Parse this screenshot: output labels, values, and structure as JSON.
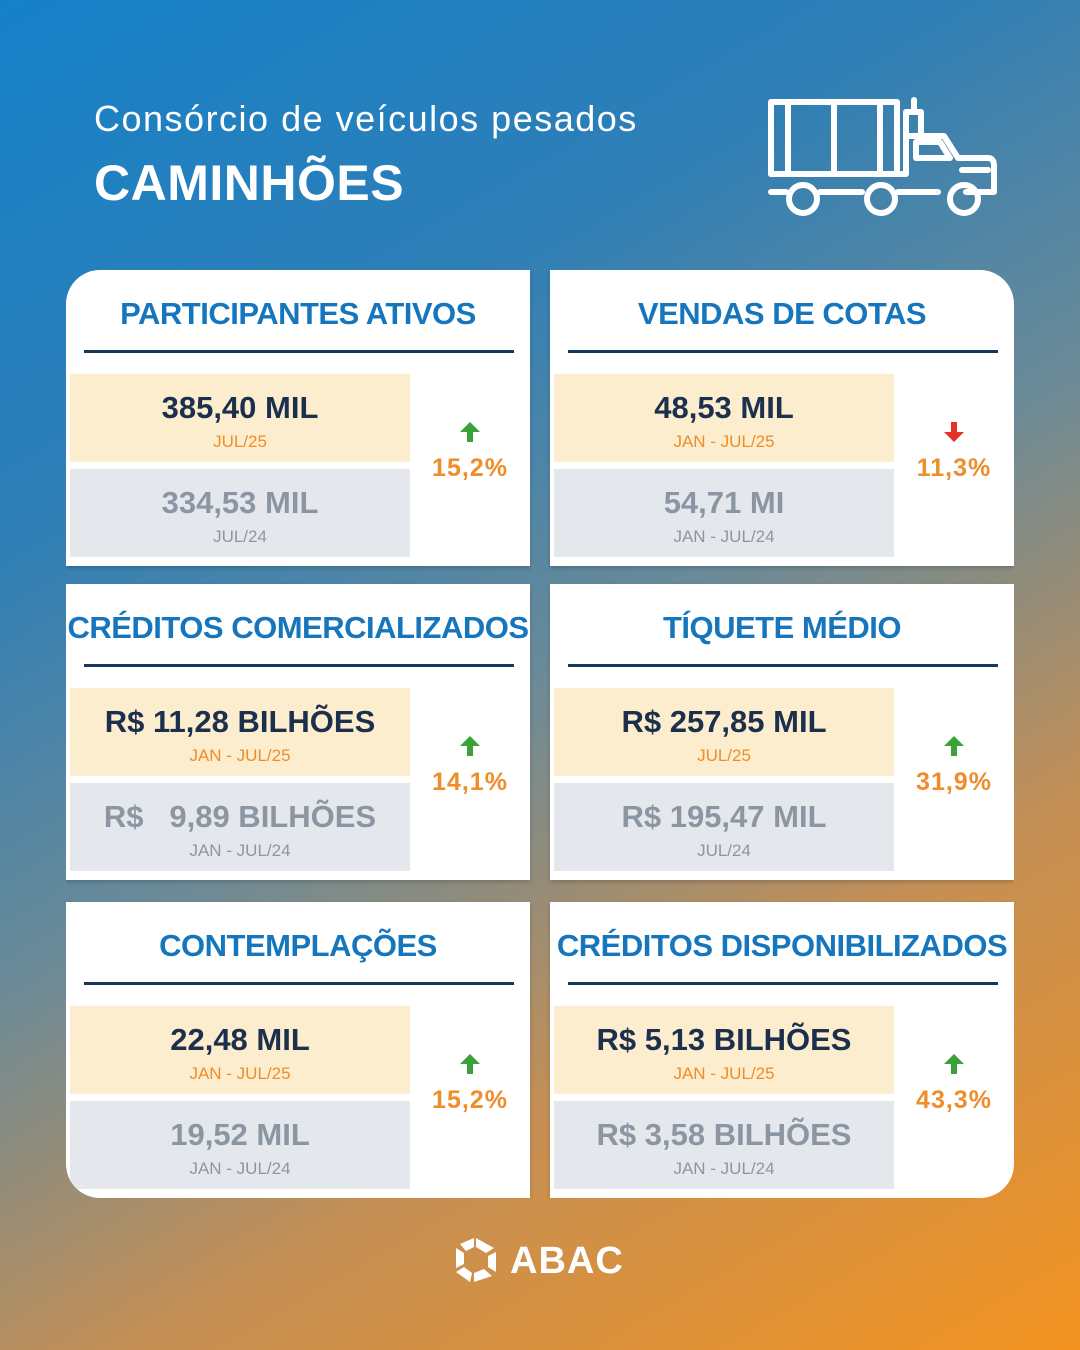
{
  "header": {
    "subtitle": "Consórcio de veículos pesados",
    "title": "CAMINHÕES",
    "icon": "truck-icon"
  },
  "colors": {
    "accent_blue": "#1576bd",
    "navy": "#18385a",
    "orange": "#ee8d2a",
    "up_green": "#3aa13b",
    "down_red": "#e4322b",
    "current_bg": "#fbedce",
    "previous_bg": "#e4e8ed"
  },
  "cards": [
    {
      "title": "PARTICIPANTES ATIVOS",
      "current": {
        "value": "385,40 MIL",
        "period": "JUL/25"
      },
      "previous": {
        "value": "334,53 MIL",
        "period": "JUL/24"
      },
      "change": "15,2%",
      "direction": "up"
    },
    {
      "title": "VENDAS DE COTAS",
      "current": {
        "value": "48,53 MIL",
        "period": "JAN - JUL/25"
      },
      "previous": {
        "value": "54,71 MI",
        "period": "JAN - JUL/24"
      },
      "change": "11,3%",
      "direction": "down"
    },
    {
      "title": "CRÉDITOS COMERCIALIZADOS",
      "current": {
        "value": "R$ 11,28 BILHÕES",
        "period": "JAN - JUL/25"
      },
      "previous": {
        "value": "R$   9,89 BILHÕES",
        "period": "JAN - JUL/24"
      },
      "change": "14,1%",
      "direction": "up"
    },
    {
      "title": "TÍQUETE MÉDIO",
      "current": {
        "value": "R$ 257,85 MIL",
        "period": "JUL/25"
      },
      "previous": {
        "value": "R$ 195,47 MIL",
        "period": "JUL/24"
      },
      "change": "31,9%",
      "direction": "up"
    },
    {
      "title": "CONTEMPLAÇÕES",
      "current": {
        "value": "22,48 MIL",
        "period": "JAN - JUL/25"
      },
      "previous": {
        "value": "19,52 MIL",
        "period": "JAN - JUL/24"
      },
      "change": "15,2%",
      "direction": "up"
    },
    {
      "title": "CRÉDITOS DISPONIBILIZADOS",
      "current": {
        "value": "R$ 5,13 BILHÕES",
        "period": "JAN - JUL/25"
      },
      "previous": {
        "value": "R$ 3,58 BILHÕES",
        "period": "JAN - JUL/24"
      },
      "change": "43,3%",
      "direction": "up"
    }
  ],
  "footer": {
    "logo_text": "ABAC",
    "logo_icon": "abac-logo-icon"
  }
}
